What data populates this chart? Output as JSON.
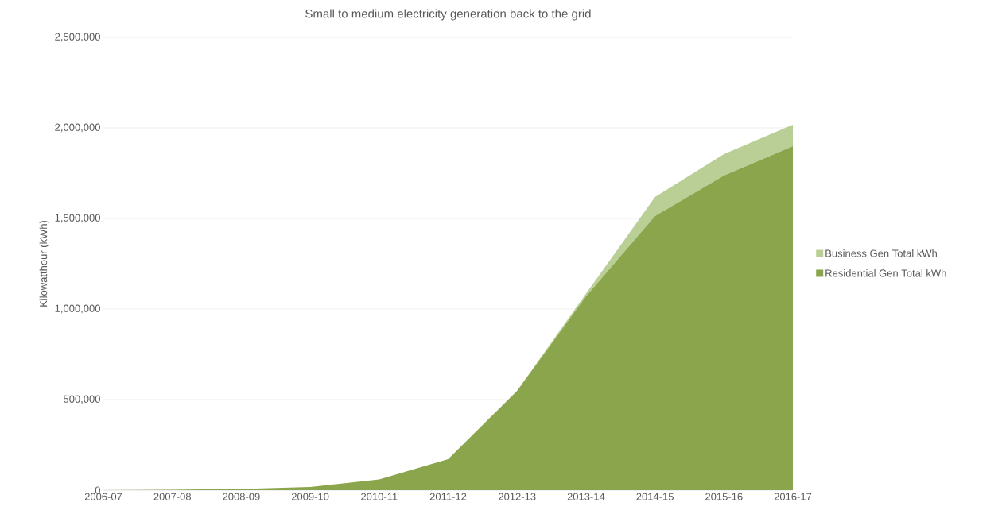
{
  "chart_data": {
    "type": "area",
    "title": "Small to medium electricity generation back to the grid",
    "ylabel": "Kilowatthour (kWh)",
    "categories": [
      "2006-07",
      "2007-08",
      "2008-09",
      "2009-10",
      "2010-11",
      "2011-12",
      "2012-13",
      "2013-14",
      "2014-15",
      "2015-16",
      "2016-17"
    ],
    "series": [
      {
        "name": "Residential Gen Total kWh",
        "color": "#8aa54b",
        "values": [
          0,
          2000,
          7000,
          17000,
          59000,
          171000,
          548000,
          1070000,
          1513000,
          1737000,
          1899000
        ]
      },
      {
        "name": "Business Gen Total kWh",
        "color": "#b9cf96",
        "values": [
          0,
          0,
          0,
          0,
          0,
          0,
          0,
          15000,
          105000,
          118000,
          119000
        ]
      }
    ],
    "stacked": true,
    "ylim": [
      0,
      2500000
    ],
    "yticks": [
      {
        "value": 0,
        "label": "0"
      },
      {
        "value": 500000,
        "label": "500,000"
      },
      {
        "value": 1000000,
        "label": "1,000,000"
      },
      {
        "value": 1500000,
        "label": "1,500,000"
      },
      {
        "value": 2000000,
        "label": "2,000,000"
      },
      {
        "value": 2500000,
        "label": "2,500,000"
      }
    ],
    "grid": "y",
    "legend": "right"
  }
}
